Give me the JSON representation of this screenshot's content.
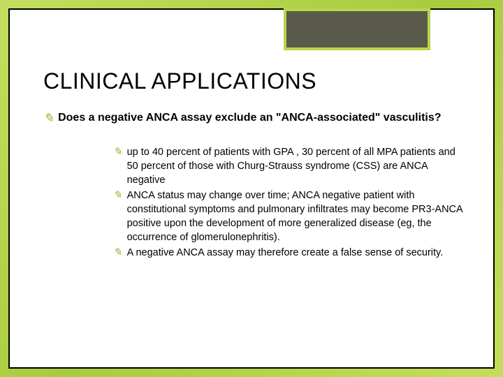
{
  "colors": {
    "gradient_start": "#c5dd5e",
    "gradient_mid": "#a8cc3e",
    "bullet_color": "#8fb82e",
    "deco_fill": "#5a5a4a",
    "deco_border": "#b8d64a",
    "text_color": "#000000",
    "frame_bg": "#ffffff",
    "frame_border": "#000000"
  },
  "typography": {
    "title_fontsize": 32,
    "main_fontsize": 16,
    "sub_fontsize": 14.5,
    "font_family": "Arial"
  },
  "title": "CLINICAL APPLICATIONS",
  "main_point": "Does a negative ANCA assay exclude an \"ANCA-associated\" vasculitis?",
  "sub_points": [
    " up to 40 percent of patients with GPA , 30 percent of all MPA patients and 50 percent of those with Churg-Strauss syndrome (CSS) are ANCA negative",
    "ANCA status may change over time; ANCA negative patient with constitutional symptoms and pulmonary infiltrates may become PR3-ANCA positive upon the development of more generalized disease (eg, the occurrence of glomerulonephritis).",
    "A negative ANCA assay may therefore create a false sense of security."
  ],
  "bullet_glyph": "✎"
}
